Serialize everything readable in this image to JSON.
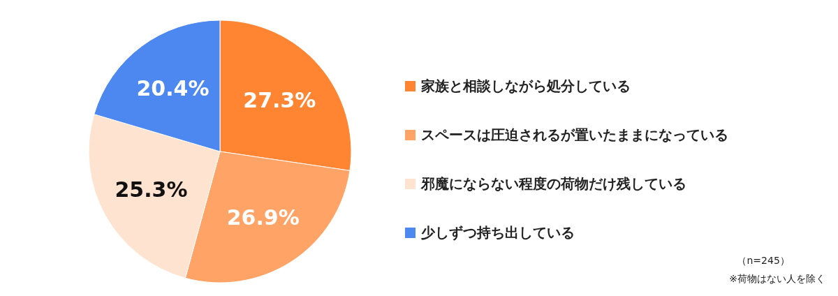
{
  "chart_data": {
    "type": "pie",
    "categories": [
      "家族と相談しながら処分している",
      "スペースは圧迫されるが置いたままになっている",
      "邪魔にならない程度の荷物だけ残している",
      "少しずつ持ち出している"
    ],
    "values": [
      27.3,
      26.9,
      25.3,
      20.4
    ],
    "value_labels": [
      "27.3%",
      "26.9%",
      "25.3%",
      "20.4%"
    ],
    "colors": [
      "#ff8533",
      "#ffa366",
      "#ffe3d1",
      "#4d88f0"
    ],
    "legend": "right",
    "annotations": [
      "（n=245）",
      "※荷物はない人を除く"
    ]
  }
}
